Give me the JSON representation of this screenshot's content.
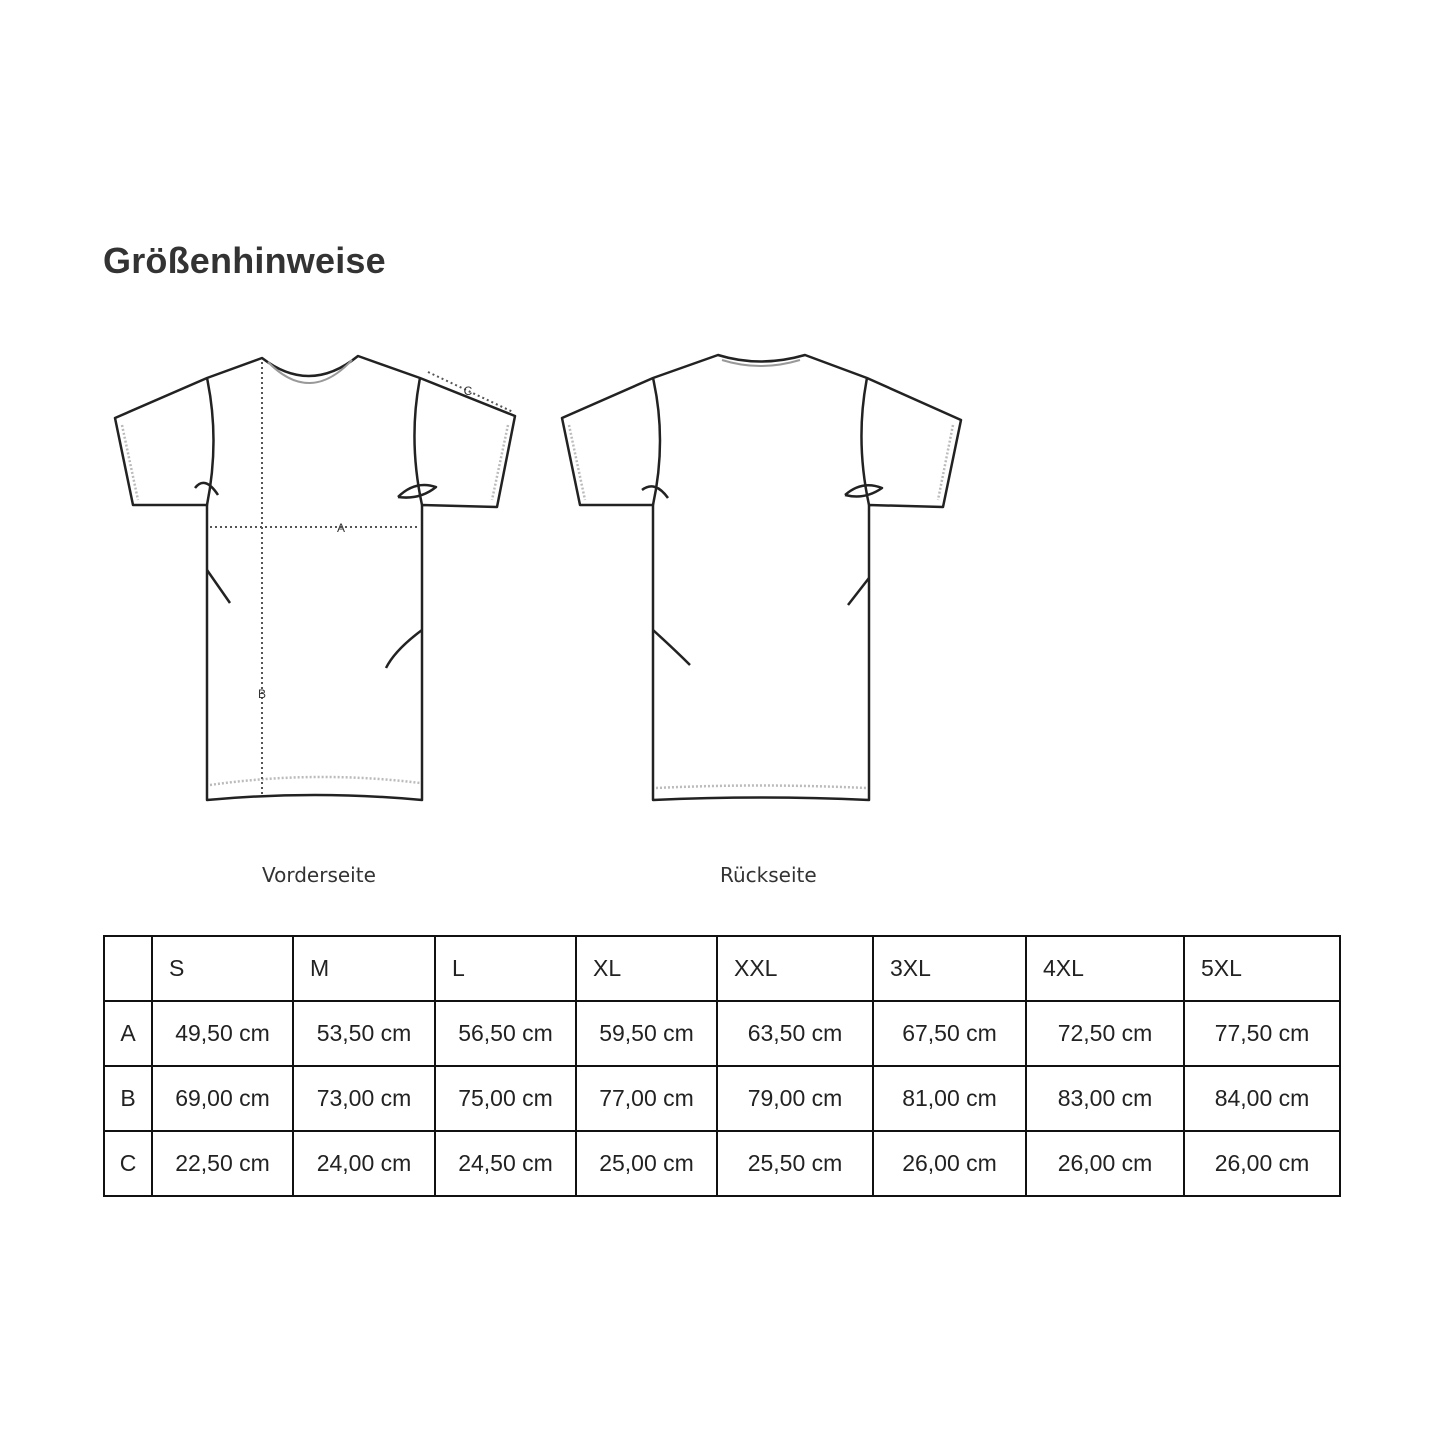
{
  "title": "Größenhinweise",
  "figure": {
    "front_label": "Vorderseite",
    "back_label": "Rückseite",
    "measure_labels": {
      "a": "A",
      "b": "B",
      "c": "C"
    }
  },
  "table": {
    "headers": [
      "",
      "S",
      "M",
      "L",
      "XL",
      "XXL",
      "3XL",
      "4XL",
      "5XL"
    ],
    "rows": [
      {
        "label": "A",
        "values": [
          "49,50 cm",
          "53,50 cm",
          "56,50 cm",
          "59,50 cm",
          "63,50 cm",
          "67,50 cm",
          "72,50 cm",
          "77,50 cm"
        ]
      },
      {
        "label": "B",
        "values": [
          "69,00 cm",
          "73,00 cm",
          "75,00 cm",
          "77,00 cm",
          "79,00 cm",
          "81,00 cm",
          "83,00 cm",
          "84,00 cm"
        ]
      },
      {
        "label": "C",
        "values": [
          "22,50 cm",
          "24,00 cm",
          "24,50 cm",
          "25,00 cm",
          "25,50 cm",
          "26,00 cm",
          "26,00 cm",
          "26,00 cm"
        ]
      }
    ]
  }
}
